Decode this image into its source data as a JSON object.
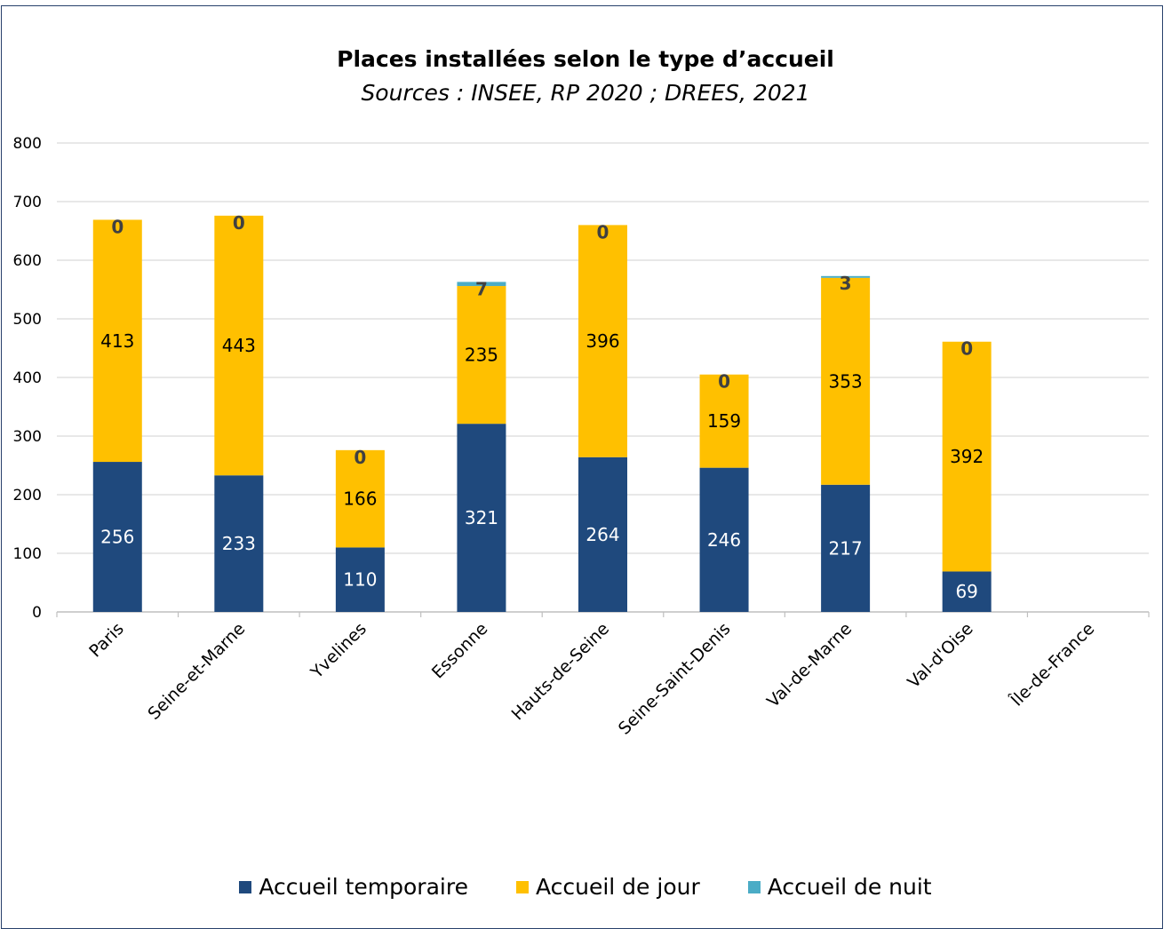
{
  "chart_data": {
    "type": "bar",
    "stacked": true,
    "title": "Places installées selon le type d’accueil",
    "subtitle": "Sources : INSEE, RP 2020 ; DREES, 2021",
    "categories": [
      "Paris",
      "Seine-et-Marne",
      "Yvelines",
      "Essonne",
      "Hauts-de-Seine",
      "Seine-Saint-Denis",
      "Val-de-Marne",
      "Val-d'Oise",
      "Île-de-France"
    ],
    "series": [
      {
        "name": "Accueil temporaire",
        "color": "#1f497d",
        "label_color": "#ffffff",
        "values": [
          256,
          233,
          110,
          321,
          264,
          246,
          217,
          69,
          null
        ]
      },
      {
        "name": "Accueil de jour",
        "color": "#ffc000",
        "label_color": "#000000",
        "values": [
          413,
          443,
          166,
          235,
          396,
          159,
          353,
          392,
          null
        ]
      },
      {
        "name": "Accueil de nuit",
        "color": "#4bacc6",
        "label_color": "#404040",
        "values": [
          0,
          0,
          0,
          7,
          0,
          0,
          3,
          0,
          null
        ]
      }
    ],
    "yticks": [
      0,
      100,
      200,
      300,
      400,
      500,
      600,
      700,
      800
    ],
    "ylim": [
      0,
      800
    ],
    "grid": true,
    "legend_position": "bottom"
  }
}
